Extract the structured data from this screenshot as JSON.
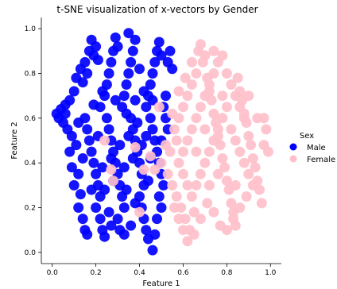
{
  "chart_data": {
    "type": "scatter",
    "title": "t-SNE visualization of x-vectors by Gender",
    "xlabel": "Feature 1",
    "ylabel": "Feature 2",
    "xlim": [
      -0.05,
      1.05
    ],
    "ylim": [
      -0.05,
      1.05
    ],
    "xticks": [
      "0.0",
      "0.2",
      "0.4",
      "0.6",
      "0.8",
      "1.0"
    ],
    "yticks": [
      "0.0",
      "0.2",
      "0.4",
      "0.6",
      "0.8",
      "1.0"
    ],
    "grid": false,
    "legend": {
      "title": "Sex",
      "placement": "right",
      "entries": [
        {
          "label": "Male",
          "color": "#0000ff"
        },
        {
          "label": "Female",
          "color": "#ffc0cb"
        }
      ]
    },
    "series": [
      {
        "name": "Male",
        "color": "#0000ff",
        "points": [
          [
            0.02,
            0.62
          ],
          [
            0.03,
            0.6
          ],
          [
            0.04,
            0.64
          ],
          [
            0.05,
            0.58
          ],
          [
            0.06,
            0.66
          ],
          [
            0.07,
            0.55
          ],
          [
            0.08,
            0.68
          ],
          [
            0.06,
            0.62
          ],
          [
            0.09,
            0.52
          ],
          [
            0.08,
            0.45
          ],
          [
            0.09,
            0.38
          ],
          [
            0.1,
            0.72
          ],
          [
            0.11,
            0.48
          ],
          [
            0.12,
            0.35
          ],
          [
            0.1,
            0.3
          ],
          [
            0.13,
            0.26
          ],
          [
            0.12,
            0.2
          ],
          [
            0.14,
            0.15
          ],
          [
            0.15,
            0.1
          ],
          [
            0.16,
            0.08
          ],
          [
            0.11,
            0.78
          ],
          [
            0.13,
            0.82
          ],
          [
            0.14,
            0.76
          ],
          [
            0.15,
            0.85
          ],
          [
            0.16,
            0.8
          ],
          [
            0.17,
            0.9
          ],
          [
            0.18,
            0.95
          ],
          [
            0.19,
            0.88
          ],
          [
            0.2,
            0.92
          ],
          [
            0.21,
            0.86
          ],
          [
            0.15,
            0.6
          ],
          [
            0.16,
            0.55
          ],
          [
            0.17,
            0.5
          ],
          [
            0.18,
            0.45
          ],
          [
            0.19,
            0.4
          ],
          [
            0.2,
            0.35
          ],
          [
            0.21,
            0.3
          ],
          [
            0.22,
            0.25
          ],
          [
            0.2,
            0.2
          ],
          [
            0.22,
            0.15
          ],
          [
            0.23,
            0.1
          ],
          [
            0.24,
            0.07
          ],
          [
            0.22,
            0.65
          ],
          [
            0.24,
            0.7
          ],
          [
            0.25,
            0.75
          ],
          [
            0.26,
            0.8
          ],
          [
            0.27,
            0.85
          ],
          [
            0.28,
            0.9
          ],
          [
            0.29,
            0.96
          ],
          [
            0.3,
            0.92
          ],
          [
            0.25,
            0.6
          ],
          [
            0.26,
            0.55
          ],
          [
            0.27,
            0.5
          ],
          [
            0.28,
            0.45
          ],
          [
            0.29,
            0.4
          ],
          [
            0.3,
            0.35
          ],
          [
            0.31,
            0.3
          ],
          [
            0.32,
            0.25
          ],
          [
            0.33,
            0.2
          ],
          [
            0.3,
            0.15
          ],
          [
            0.31,
            0.1
          ],
          [
            0.33,
            0.08
          ],
          [
            0.32,
            0.65
          ],
          [
            0.33,
            0.7
          ],
          [
            0.34,
            0.75
          ],
          [
            0.35,
            0.8
          ],
          [
            0.36,
            0.85
          ],
          [
            0.37,
            0.9
          ],
          [
            0.38,
            0.95
          ],
          [
            0.35,
            0.98
          ],
          [
            0.36,
            0.6
          ],
          [
            0.37,
            0.55
          ],
          [
            0.38,
            0.5
          ],
          [
            0.39,
            0.45
          ],
          [
            0.4,
            0.4
          ],
          [
            0.41,
            0.35
          ],
          [
            0.42,
            0.3
          ],
          [
            0.4,
            0.25
          ],
          [
            0.41,
            0.2
          ],
          [
            0.42,
            0.15
          ],
          [
            0.43,
            0.1
          ],
          [
            0.44,
            0.06
          ],
          [
            0.43,
            0.65
          ],
          [
            0.44,
            0.7
          ],
          [
            0.45,
            0.75
          ],
          [
            0.46,
            0.8
          ],
          [
            0.47,
            0.85
          ],
          [
            0.48,
            0.9
          ],
          [
            0.49,
            0.94
          ],
          [
            0.5,
            0.88
          ],
          [
            0.45,
            0.6
          ],
          [
            0.46,
            0.55
          ],
          [
            0.47,
            0.5
          ],
          [
            0.48,
            0.45
          ],
          [
            0.49,
            0.4
          ],
          [
            0.5,
            0.35
          ],
          [
            0.51,
            0.3
          ],
          [
            0.49,
            0.25
          ],
          [
            0.5,
            0.2
          ],
          [
            0.48,
            0.15
          ],
          [
            0.47,
            0.08
          ],
          [
            0.46,
            0.01
          ],
          [
            0.52,
            0.6
          ],
          [
            0.53,
            0.55
          ],
          [
            0.51,
            0.65
          ],
          [
            0.52,
            0.7
          ],
          [
            0.53,
            0.85
          ],
          [
            0.54,
            0.9
          ],
          [
            0.55,
            0.82
          ],
          [
            0.5,
            0.5
          ],
          [
            0.23,
            0.38
          ],
          [
            0.27,
            0.42
          ],
          [
            0.31,
            0.48
          ],
          [
            0.35,
            0.52
          ],
          [
            0.39,
            0.58
          ],
          [
            0.43,
            0.52
          ],
          [
            0.24,
            0.28
          ],
          [
            0.28,
            0.32
          ],
          [
            0.33,
            0.38
          ],
          [
            0.37,
            0.42
          ],
          [
            0.41,
            0.48
          ],
          [
            0.45,
            0.42
          ],
          [
            0.19,
            0.66
          ],
          [
            0.23,
            0.72
          ],
          [
            0.29,
            0.68
          ],
          [
            0.34,
            0.62
          ],
          [
            0.38,
            0.68
          ],
          [
            0.42,
            0.72
          ],
          [
            0.26,
            0.18
          ],
          [
            0.34,
            0.28
          ],
          [
            0.38,
            0.22
          ],
          [
            0.44,
            0.32
          ],
          [
            0.14,
            0.42
          ],
          [
            0.12,
            0.58
          ],
          [
            0.18,
            0.28
          ],
          [
            0.21,
            0.52
          ],
          [
            0.36,
            0.12
          ],
          [
            0.27,
            0.12
          ],
          [
            0.46,
            0.68
          ],
          [
            0.4,
            0.82
          ]
        ]
      },
      {
        "name": "Female",
        "color": "#ffc0cb",
        "points": [
          [
            0.5,
            0.4
          ],
          [
            0.52,
            0.48
          ],
          [
            0.53,
            0.35
          ],
          [
            0.54,
            0.45
          ],
          [
            0.55,
            0.3
          ],
          [
            0.56,
            0.55
          ],
          [
            0.57,
            0.25
          ],
          [
            0.58,
            0.6
          ],
          [
            0.59,
            0.2
          ],
          [
            0.6,
            0.65
          ],
          [
            0.61,
            0.15
          ],
          [
            0.62,
            0.7
          ],
          [
            0.63,
            0.1
          ],
          [
            0.64,
            0.75
          ],
          [
            0.65,
            0.08
          ],
          [
            0.66,
            0.8
          ],
          [
            0.67,
            0.9
          ],
          [
            0.68,
            0.93
          ],
          [
            0.69,
            0.85
          ],
          [
            0.7,
            0.88
          ],
          [
            0.71,
            0.78
          ],
          [
            0.72,
            0.72
          ],
          [
            0.73,
            0.68
          ],
          [
            0.74,
            0.62
          ],
          [
            0.75,
            0.58
          ],
          [
            0.76,
            0.52
          ],
          [
            0.77,
            0.48
          ],
          [
            0.78,
            0.42
          ],
          [
            0.79,
            0.38
          ],
          [
            0.8,
            0.32
          ],
          [
            0.81,
            0.28
          ],
          [
            0.82,
            0.22
          ],
          [
            0.83,
            0.18
          ],
          [
            0.84,
            0.12
          ],
          [
            0.85,
            0.78
          ],
          [
            0.86,
            0.72
          ],
          [
            0.87,
            0.68
          ],
          [
            0.88,
            0.62
          ],
          [
            0.89,
            0.58
          ],
          [
            0.9,
            0.52
          ],
          [
            0.91,
            0.48
          ],
          [
            0.92,
            0.42
          ],
          [
            0.93,
            0.38
          ],
          [
            0.94,
            0.32
          ],
          [
            0.95,
            0.28
          ],
          [
            0.96,
            0.22
          ],
          [
            0.97,
            0.48
          ],
          [
            0.98,
            0.55
          ],
          [
            0.99,
            0.45
          ],
          [
            0.97,
            0.6
          ],
          [
            0.58,
            0.4
          ],
          [
            0.6,
            0.45
          ],
          [
            0.62,
            0.5
          ],
          [
            0.64,
            0.55
          ],
          [
            0.66,
            0.6
          ],
          [
            0.68,
            0.65
          ],
          [
            0.7,
            0.7
          ],
          [
            0.72,
            0.75
          ],
          [
            0.74,
            0.8
          ],
          [
            0.76,
            0.85
          ],
          [
            0.78,
            0.88
          ],
          [
            0.8,
            0.8
          ],
          [
            0.82,
            0.75
          ],
          [
            0.84,
            0.7
          ],
          [
            0.86,
            0.65
          ],
          [
            0.88,
            0.6
          ],
          [
            0.56,
            0.2
          ],
          [
            0.58,
            0.15
          ],
          [
            0.6,
            0.1
          ],
          [
            0.62,
            0.05
          ],
          [
            0.64,
            0.25
          ],
          [
            0.66,
            0.3
          ],
          [
            0.68,
            0.35
          ],
          [
            0.7,
            0.4
          ],
          [
            0.72,
            0.45
          ],
          [
            0.74,
            0.5
          ],
          [
            0.76,
            0.55
          ],
          [
            0.78,
            0.6
          ],
          [
            0.8,
            0.65
          ],
          [
            0.82,
            0.55
          ],
          [
            0.84,
            0.5
          ],
          [
            0.86,
            0.45
          ],
          [
            0.88,
            0.4
          ],
          [
            0.9,
            0.35
          ],
          [
            0.92,
            0.3
          ],
          [
            0.89,
            0.25
          ],
          [
            0.86,
            0.2
          ],
          [
            0.83,
            0.15
          ],
          [
            0.8,
            0.1
          ],
          [
            0.77,
            0.12
          ],
          [
            0.74,
            0.18
          ],
          [
            0.71,
            0.22
          ],
          [
            0.68,
            0.15
          ],
          [
            0.65,
            0.18
          ],
          [
            0.62,
            0.3
          ],
          [
            0.6,
            0.35
          ],
          [
            0.57,
            0.5
          ],
          [
            0.55,
            0.62
          ],
          [
            0.58,
            0.72
          ],
          [
            0.61,
            0.78
          ],
          [
            0.64,
            0.85
          ],
          [
            0.74,
            0.9
          ],
          [
            0.78,
            0.7
          ],
          [
            0.7,
            0.55
          ],
          [
            0.66,
            0.45
          ],
          [
            0.72,
            0.3
          ],
          [
            0.76,
            0.35
          ],
          [
            0.84,
            0.3
          ],
          [
            0.9,
            0.7
          ],
          [
            0.94,
            0.6
          ],
          [
            0.4,
            0.18
          ],
          [
            0.38,
            0.47
          ],
          [
            0.27,
            0.37
          ],
          [
            0.28,
            0.32
          ],
          [
            0.24,
            0.5
          ],
          [
            0.45,
            0.43
          ],
          [
            0.47,
            0.37
          ],
          [
            0.42,
            0.37
          ],
          [
            0.49,
            0.65
          ]
        ]
      }
    ]
  }
}
